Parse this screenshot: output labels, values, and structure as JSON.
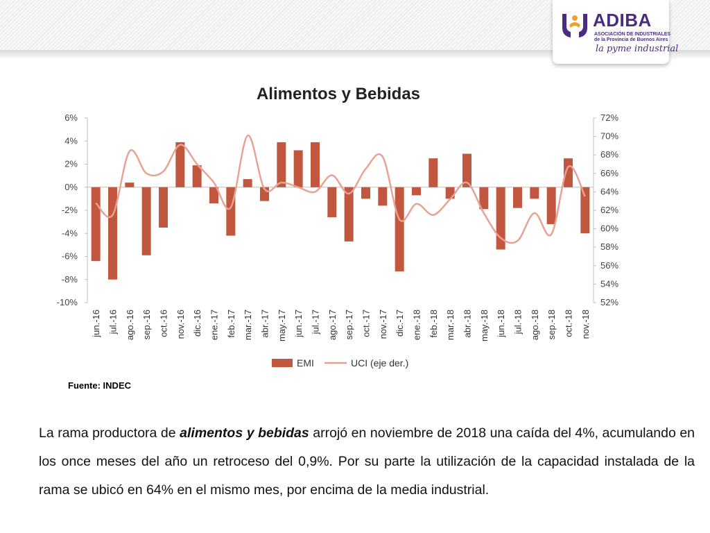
{
  "header": {
    "logo_name": "ADIBA",
    "logo_subtitle_1": "ASOCIACIÓN DE INDUSTRIALES",
    "logo_subtitle_2": "de la Provincia de Buenos Aires",
    "logo_slogan": "la pyme industrial",
    "brand_color": "#4a2c82"
  },
  "chart_data": {
    "type": "bar+line",
    "title": "Alimentos y Bebidas",
    "categories": [
      "jun.-16",
      "jul.-16",
      "ago.-16",
      "sep.-16",
      "oct.-16",
      "nov.-16",
      "dic.-16",
      "ene.-17",
      "feb.-17",
      "mar.-17",
      "abr.-17",
      "may.-17",
      "jun.-17",
      "jul.-17",
      "ago.-17",
      "sep.-17",
      "oct.-17",
      "nov.-17",
      "dic.-17",
      "ene.-18",
      "feb.-18",
      "mar.-18",
      "abr.-18",
      "may.-18",
      "jun.-18",
      "jul.-18",
      "ago.-18",
      "sep.-18",
      "oct.-18",
      "nov.-18"
    ],
    "series": [
      {
        "name": "EMI",
        "type": "bar",
        "axis": "left",
        "color": "#c0573e",
        "values": [
          -6.4,
          -8.0,
          0.4,
          -5.9,
          -3.5,
          3.9,
          1.9,
          -1.4,
          -4.2,
          0.7,
          -1.2,
          3.9,
          3.2,
          3.9,
          -2.6,
          -4.7,
          -1.0,
          -1.6,
          -7.3,
          -0.7,
          2.5,
          -1.0,
          2.9,
          -1.9,
          -5.4,
          -1.8,
          -1.0,
          -3.2,
          2.5,
          -4.0
        ]
      },
      {
        "name": "UCI (eje der.)",
        "type": "line",
        "axis": "right",
        "color": "#e9a292",
        "values": [
          62.8,
          61.5,
          68.4,
          66.0,
          66.2,
          69.1,
          67.0,
          65.0,
          62.3,
          70.1,
          64.3,
          65.0,
          64.5,
          64.0,
          65.8,
          63.8,
          66.5,
          67.8,
          61.0,
          62.7,
          61.5,
          63.2,
          65.0,
          61.7,
          59.0,
          58.7,
          61.7,
          59.4,
          66.7,
          63.5
        ]
      }
    ],
    "left_axis": {
      "min": -10,
      "max": 6,
      "step": 2,
      "tick_labels": [
        "-10%",
        "-8%",
        "-6%",
        "-4%",
        "-2%",
        "0%",
        "2%",
        "4%",
        "6%"
      ]
    },
    "right_axis": {
      "min": 52,
      "max": 72,
      "step": 2,
      "tick_labels": [
        "52%",
        "54%",
        "56%",
        "58%",
        "60%",
        "62%",
        "64%",
        "66%",
        "68%",
        "70%",
        "72%"
      ]
    },
    "legend_position": "bottom",
    "grid": false
  },
  "source": "Fuente: INDEC",
  "paragraph": {
    "before": "La rama productora de ",
    "emphasis": "alimentos y bebidas",
    "after": " arrojó en noviembre de 2018 una caída del 4%, acumulando en los once meses del año un retroceso del 0,9%. Por su parte la utilización de la capacidad instalada de la rama se ubicó en 64% en el mismo mes, por encima de la media industrial."
  }
}
